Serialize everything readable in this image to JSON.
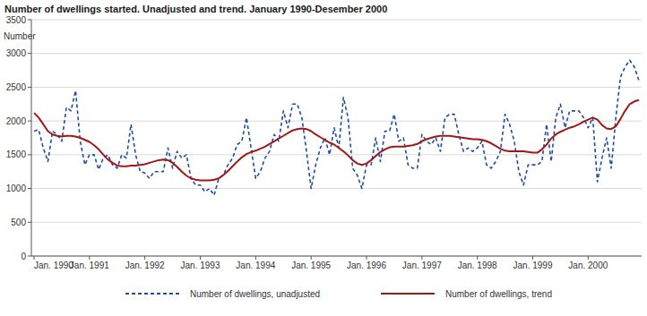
{
  "chart_data": {
    "type": "line",
    "title": "Number of dwellings started. Unadjusted and trend. January 1990-Desember 2000",
    "y_label": "Number",
    "categories": [
      "Jan. 1990",
      null,
      null,
      null,
      null,
      null,
      null,
      null,
      null,
      null,
      null,
      null,
      "Jan. 1991",
      null,
      null,
      null,
      null,
      null,
      null,
      null,
      null,
      null,
      null,
      null,
      "Jan. 1992",
      null,
      null,
      null,
      null,
      null,
      null,
      null,
      null,
      null,
      null,
      null,
      "Jan. 1993",
      null,
      null,
      null,
      null,
      null,
      null,
      null,
      null,
      null,
      null,
      null,
      "Jan. 1994",
      null,
      null,
      null,
      null,
      null,
      null,
      null,
      null,
      null,
      null,
      null,
      "Jan. 1995",
      null,
      null,
      null,
      null,
      null,
      null,
      null,
      null,
      null,
      null,
      null,
      "Jan. 1996",
      null,
      null,
      null,
      null,
      null,
      null,
      null,
      null,
      null,
      null,
      null,
      "Jan. 1997",
      null,
      null,
      null,
      null,
      null,
      null,
      null,
      null,
      null,
      null,
      null,
      "Jan. 1998",
      null,
      null,
      null,
      null,
      null,
      null,
      null,
      null,
      null,
      null,
      null,
      "Jan. 1999",
      null,
      null,
      null,
      null,
      null,
      null,
      null,
      null,
      null,
      null,
      null,
      "Jan. 2000",
      null,
      null,
      null,
      null,
      null,
      null,
      null,
      null,
      null,
      null,
      null
    ],
    "series": [
      {
        "name": "Number of dwellings, unadjusted",
        "color": "#1c4fa3",
        "line_style": "dashed",
        "values": [
          1850,
          1870,
          1600,
          1400,
          1850,
          1800,
          1700,
          2200,
          2150,
          2450,
          1700,
          1350,
          1500,
          1500,
          1280,
          1450,
          1500,
          1350,
          1300,
          1500,
          1450,
          1950,
          1500,
          1250,
          1230,
          1150,
          1250,
          1250,
          1250,
          1600,
          1300,
          1550,
          1450,
          1500,
          1150,
          1050,
          1050,
          950,
          1000,
          900,
          1150,
          1200,
          1350,
          1450,
          1650,
          1700,
          2050,
          1600,
          1150,
          1250,
          1450,
          1550,
          1800,
          1700,
          2150,
          1900,
          2250,
          2250,
          2050,
          1550,
          1000,
          1350,
          1600,
          1750,
          1500,
          1900,
          1600,
          2350,
          2050,
          1300,
          1200,
          1000,
          1350,
          1350,
          1750,
          1400,
          1850,
          1850,
          2100,
          1700,
          1750,
          1350,
          1300,
          1300,
          1800,
          1700,
          1650,
          1750,
          1550,
          2050,
          2100,
          2100,
          1800,
          1550,
          1600,
          1550,
          1600,
          1700,
          1350,
          1300,
          1400,
          1550,
          2100,
          1950,
          1700,
          1250,
          1050,
          1350,
          1350,
          1350,
          1400,
          1950,
          1400,
          2050,
          2250,
          1900,
          2150,
          2150,
          2150,
          2050,
          1900,
          2050,
          1100,
          1450,
          1750,
          1300,
          2050,
          2650,
          2800,
          2900,
          2800,
          2600
        ]
      },
      {
        "name": "Number of dwellings, trend",
        "color": "#a01818",
        "line_style": "solid",
        "values": [
          2120,
          2050,
          1950,
          1850,
          1800,
          1780,
          1770,
          1780,
          1780,
          1770,
          1750,
          1720,
          1690,
          1640,
          1580,
          1500,
          1430,
          1380,
          1340,
          1330,
          1330,
          1340,
          1340,
          1350,
          1360,
          1380,
          1400,
          1420,
          1430,
          1420,
          1380,
          1320,
          1250,
          1190,
          1150,
          1130,
          1120,
          1120,
          1120,
          1130,
          1150,
          1200,
          1260,
          1330,
          1400,
          1460,
          1510,
          1540,
          1560,
          1590,
          1620,
          1660,
          1700,
          1740,
          1780,
          1820,
          1860,
          1880,
          1890,
          1880,
          1850,
          1800,
          1760,
          1720,
          1680,
          1650,
          1600,
          1550,
          1490,
          1420,
          1370,
          1350,
          1370,
          1420,
          1480,
          1540,
          1580,
          1610,
          1620,
          1620,
          1620,
          1630,
          1640,
          1660,
          1700,
          1730,
          1750,
          1770,
          1780,
          1780,
          1780,
          1770,
          1760,
          1750,
          1740,
          1730,
          1730,
          1720,
          1700,
          1670,
          1630,
          1590,
          1560,
          1550,
          1550,
          1550,
          1550,
          1540,
          1530,
          1530,
          1580,
          1650,
          1740,
          1800,
          1840,
          1870,
          1900,
          1920,
          1950,
          1990,
          2020,
          2050,
          2020,
          1940,
          1890,
          1880,
          1920,
          2030,
          2150,
          2250,
          2290,
          2310
        ]
      }
    ],
    "ylim": [
      0,
      3500
    ],
    "yticks": [
      0,
      500,
      1000,
      1500,
      2000,
      2500,
      3000,
      3500
    ],
    "grid": true,
    "legend": "bottom"
  }
}
